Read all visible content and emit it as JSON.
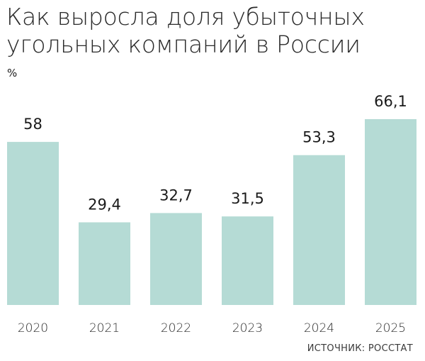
{
  "title_line1": "Как выросла доля убыточных",
  "title_line2": "угольных компаний в России",
  "unit": "%",
  "source": "ИСТОЧНИК: РОССТАТ",
  "colors": {
    "bar": "#b5dbd5",
    "text": "#1a1a1a"
  },
  "chart_data": {
    "type": "bar",
    "title": "Как выросла доля убыточных угольных компаний в России",
    "ylabel": "%",
    "categories": [
      "2020",
      "2021",
      "2022",
      "2023",
      "2024",
      "2025"
    ],
    "values": [
      58,
      29.4,
      32.7,
      31.5,
      53.3,
      66.1
    ],
    "value_labels": [
      "58",
      "29,4",
      "32,7",
      "31,5",
      "53,3",
      "66,1"
    ],
    "ylim": [
      0,
      66.1
    ],
    "grid": false,
    "legend": "none"
  }
}
